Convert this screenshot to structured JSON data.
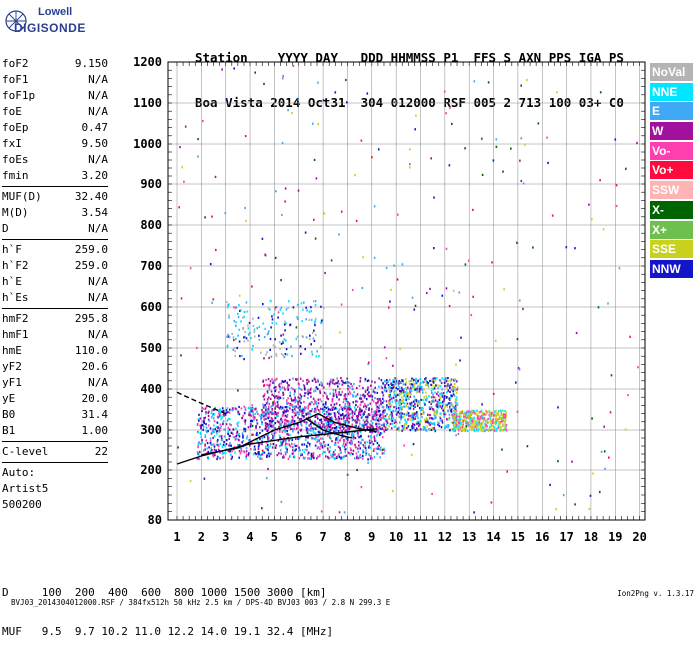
{
  "logo": {
    "brand": "Lowell",
    "product": "DIGISONDE"
  },
  "header": {
    "line1": "Station    YYYY DAY   DDD HHMMSS P1  FFS S AXN PPS IGA PS",
    "line2": "Boa Vista 2014 Oct31  304 012000 RSF 005 2 713 100 03+ C0"
  },
  "params": [
    [
      {
        "name": "foF2",
        "value": "9.150"
      },
      {
        "name": "foF1",
        "value": "N/A"
      },
      {
        "name": "foF1p",
        "value": "N/A"
      },
      {
        "name": "foE",
        "value": "N/A"
      },
      {
        "name": "foEp",
        "value": "0.47"
      },
      {
        "name": "fxI",
        "value": "9.50"
      },
      {
        "name": "foEs",
        "value": "N/A"
      },
      {
        "name": "fmin",
        "value": "3.20"
      }
    ],
    [
      {
        "name": "MUF(D)",
        "value": "32.40"
      },
      {
        "name": "M(D)",
        "value": "3.54"
      },
      {
        "name": "D",
        "value": "N/A"
      }
    ],
    [
      {
        "name": "h`F",
        "value": "259.0"
      },
      {
        "name": "h`F2",
        "value": "259.0"
      },
      {
        "name": "h`E",
        "value": "N/A"
      },
      {
        "name": "h`Es",
        "value": "N/A"
      }
    ],
    [
      {
        "name": "hmF2",
        "value": "295.8"
      },
      {
        "name": "hmF1",
        "value": "N/A"
      },
      {
        "name": "hmE",
        "value": "110.0"
      },
      {
        "name": "yF2",
        "value": "20.6"
      },
      {
        "name": "yF1",
        "value": "N/A"
      },
      {
        "name": "yE",
        "value": "20.0"
      },
      {
        "name": "B0",
        "value": "31.4"
      },
      {
        "name": "B1",
        "value": "1.00"
      }
    ],
    [
      {
        "name": "C-level",
        "value": "22"
      }
    ],
    [
      {
        "name": "Auto:",
        "value": ""
      },
      {
        "name": "Artist5",
        "value": ""
      },
      {
        "name": "500200",
        "value": ""
      }
    ]
  ],
  "legend": [
    {
      "label": "NoVal",
      "color": "#b4b4b4"
    },
    {
      "label": "NNE",
      "color": "#00e6ff"
    },
    {
      "label": "E",
      "color": "#3fa9f5"
    },
    {
      "label": "W",
      "color": "#a0119e"
    },
    {
      "label": "Vo-",
      "color": "#ff3fb0"
    },
    {
      "label": "Vo+",
      "color": "#ff0a3c"
    },
    {
      "label": "SSW",
      "color": "#ffb4b4"
    },
    {
      "label": "X-",
      "color": "#006400"
    },
    {
      "label": "X+",
      "color": "#6fbf4f"
    },
    {
      "label": "SSE",
      "color": "#c8d21e"
    },
    {
      "label": "NNW",
      "color": "#1414c8"
    }
  ],
  "dmuf": {
    "line1": "D     100  200  400  600  800 1000 1500 3000 [km]",
    "line2": "MUF   9.5  9.7 10.2 11.0 12.2 14.0 19.1 32.4 [MHz]"
  },
  "footer": {
    "left": "BVJ03_2014304012000.RSF / 384fx512h 50 kHz 2.5 km / DPS-4D BVJ03 003 / 2.8 N 299.3 E",
    "right": "Ion2Png v. 1.3.17"
  },
  "chart_data": {
    "type": "scatter",
    "title": "",
    "xlabel": "",
    "ylabel": "",
    "x_ticks": [
      "1",
      "2",
      "3",
      "4",
      "5",
      "6",
      "7",
      "8",
      "9",
      "10",
      "11",
      "12",
      "13",
      "14",
      "15",
      "16",
      "17",
      "18",
      "19",
      "20"
    ],
    "y_ticks": [
      "80",
      "200",
      "300",
      "400",
      "500",
      "600",
      "700",
      "800",
      "900",
      "1000",
      "1100",
      "1200"
    ],
    "xlim": [
      0.97,
      20.3
    ],
    "ylim": [
      80,
      1210
    ],
    "grid": true,
    "series": [
      {
        "type": "line",
        "points": [
          [
            1.0,
            215
          ],
          [
            2.0,
            235
          ],
          [
            4.0,
            265
          ],
          [
            6.0,
            283
          ],
          [
            8.0,
            295
          ],
          [
            9.2,
            303
          ]
        ]
      },
      {
        "type": "line",
        "points": [
          [
            2.0,
            238
          ],
          [
            3.5,
            255
          ],
          [
            5.0,
            300
          ],
          [
            6.0,
            318
          ],
          [
            6.8,
            340
          ],
          [
            7.5,
            318
          ],
          [
            8.5,
            303
          ],
          [
            9.2,
            296
          ]
        ]
      },
      {
        "type": "dashed",
        "points": [
          [
            1.0,
            392
          ],
          [
            1.5,
            378
          ],
          [
            2.2,
            360
          ],
          [
            3.0,
            340
          ]
        ]
      },
      {
        "type": "line",
        "points": [
          [
            6.3,
            328
          ],
          [
            7.0,
            300
          ],
          [
            7.8,
            285
          ],
          [
            8.2,
            280
          ]
        ]
      }
    ],
    "clusters": [
      {
        "x": [
          1.8,
          9.5
        ],
        "y": [
          230,
          360
        ],
        "n": 1200,
        "colors": [
          "#a0119e",
          "#00e6ff",
          "#3fa9f5",
          "#ff3fb0",
          "#1414c8"
        ]
      },
      {
        "x": [
          4.5,
          9.5
        ],
        "y": [
          300,
          430
        ],
        "n": 700,
        "colors": [
          "#a0119e",
          "#a0119e",
          "#ff3fb0",
          "#1414c8",
          "#3fa9f5"
        ]
      },
      {
        "x": [
          9.5,
          12.5
        ],
        "y": [
          300,
          430
        ],
        "n": 700,
        "colors": [
          "#00e6ff",
          "#3fa9f5",
          "#a0119e",
          "#1414c8",
          "#c8d21e"
        ]
      },
      {
        "x": [
          12.3,
          14.5
        ],
        "y": [
          300,
          350
        ],
        "n": 420,
        "colors": [
          "#c8d21e",
          "#c8d21e",
          "#00e6ff",
          "#ff3fb0"
        ]
      },
      {
        "x": [
          3.0,
          7.0
        ],
        "y": [
          480,
          620
        ],
        "n": 180,
        "colors": [
          "#3fa9f5",
          "#1414c8",
          "#00e6ff",
          "#b4b4b4"
        ]
      },
      {
        "x": [
          1,
          20
        ],
        "y": [
          100,
          1200
        ],
        "n": 260,
        "colors": [
          "#a0119e",
          "#ff0a3c",
          "#006400",
          "#c8d21e",
          "#ff3fb0",
          "#3fa9f5",
          "#1414c8"
        ]
      }
    ]
  }
}
